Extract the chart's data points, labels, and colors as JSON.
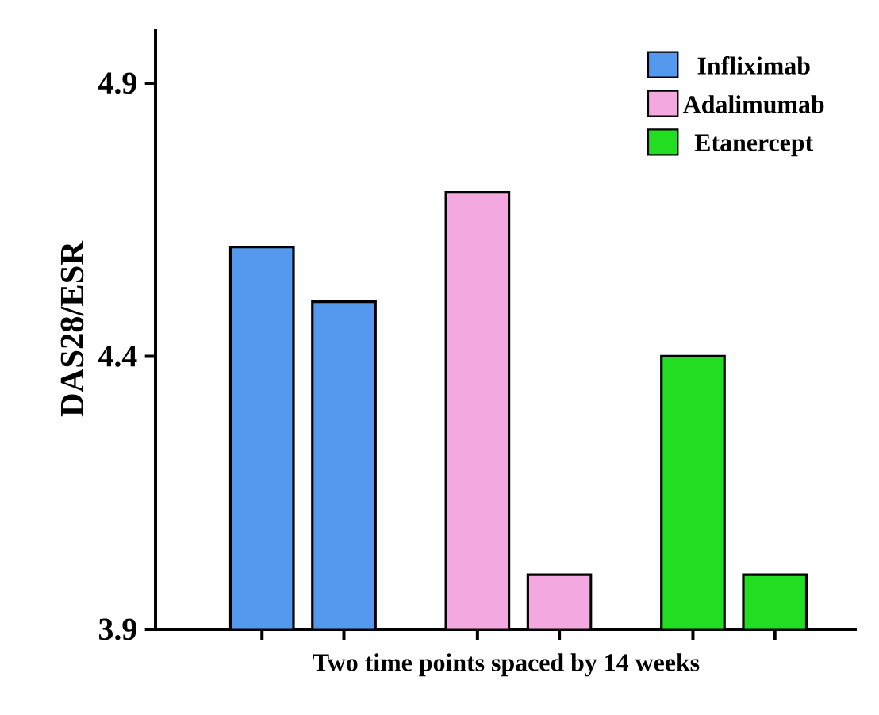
{
  "chart_data": {
    "type": "bar",
    "xlabel": "Two time points spaced by 14 weeks",
    "ylabel": "DAS28/ESR",
    "categories": [
      null,
      null,
      null,
      null,
      null,
      null
    ],
    "series": [
      {
        "name": "Infliximab",
        "color": "#5599ee",
        "values": [
          4.6,
          4.5,
          null,
          null,
          null,
          null
        ]
      },
      {
        "name": "Adalimumab",
        "color": "#f4a8e0",
        "values": [
          null,
          null,
          4.7,
          4.0,
          null,
          null
        ]
      },
      {
        "name": "Etanercept",
        "color": "#22dd22",
        "values": [
          null,
          null,
          null,
          null,
          4.4,
          4.0
        ]
      }
    ],
    "ylim": [
      3.9,
      5.0
    ],
    "yticks": [
      3.9,
      4.4,
      4.9
    ],
    "legend": "top right",
    "tick_labels": "y",
    "grid": false
  }
}
